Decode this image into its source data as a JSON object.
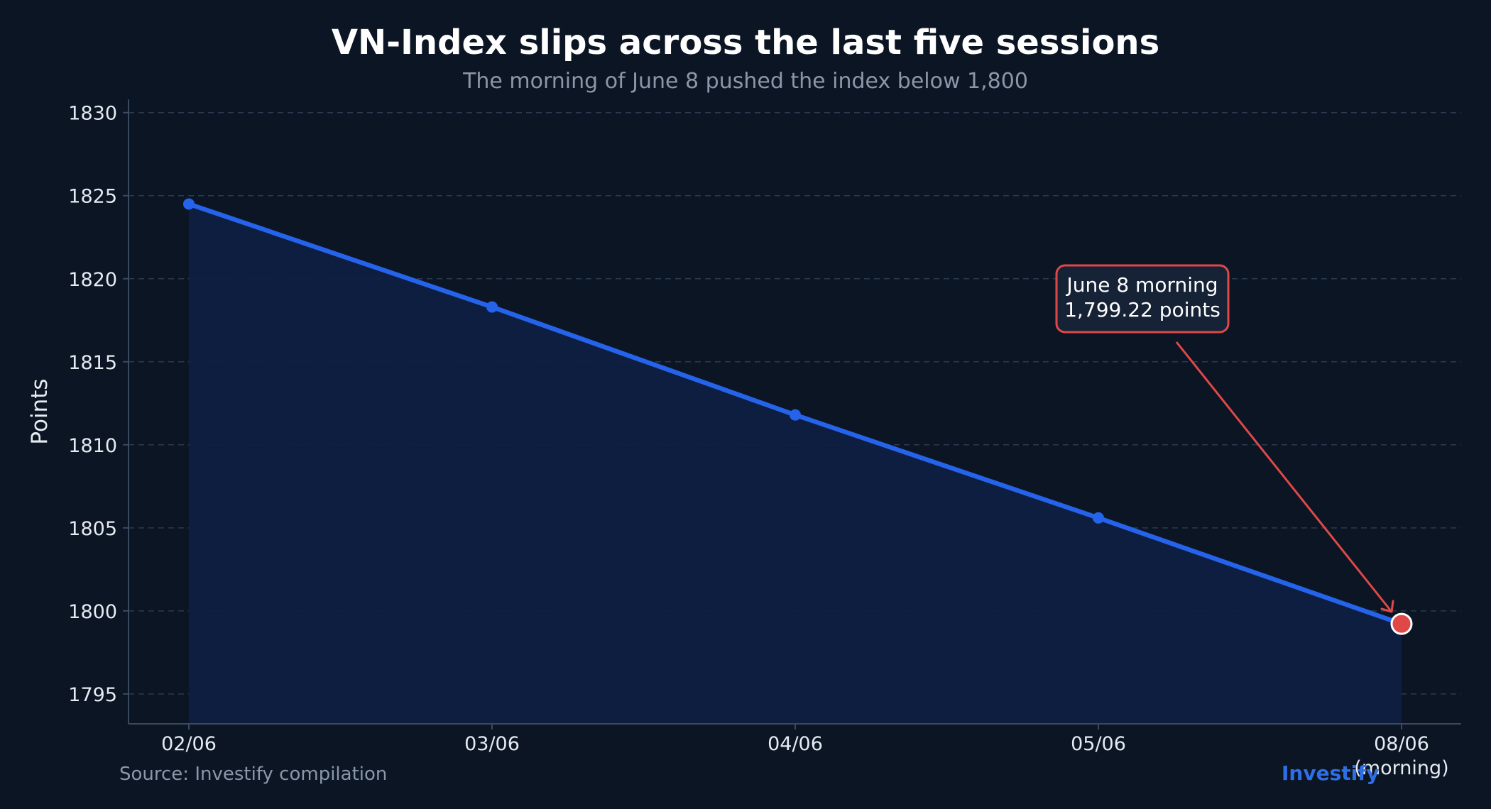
{
  "colors": {
    "background": "#0b1524",
    "line": "#2563eb",
    "area_fill": "#0d1f44",
    "highlight": "#e04848",
    "brand": "#2f6fe6"
  },
  "chart_data": {
    "type": "line",
    "title": "VN-Index slips across the last five sessions",
    "subtitle": "The morning of June 8 pushed the index below 1,800",
    "xlabel": "",
    "ylabel": "Points",
    "categories": [
      "02/06",
      "03/06",
      "04/06",
      "05/06",
      "08/06\n(morning)"
    ],
    "values": [
      1824.5,
      1818.3,
      1811.8,
      1805.6,
      1799.22
    ],
    "ylim": [
      1793.2,
      1830.8
    ],
    "yticks": [
      1795,
      1800,
      1805,
      1810,
      1815,
      1820,
      1825,
      1830
    ],
    "grid": true,
    "highlight_index": 4,
    "annotation": {
      "line1": "June 8 morning",
      "line2": "1,799.22 points"
    }
  },
  "footer": {
    "source": "Source: Investify compilation",
    "brand": "Investify"
  }
}
